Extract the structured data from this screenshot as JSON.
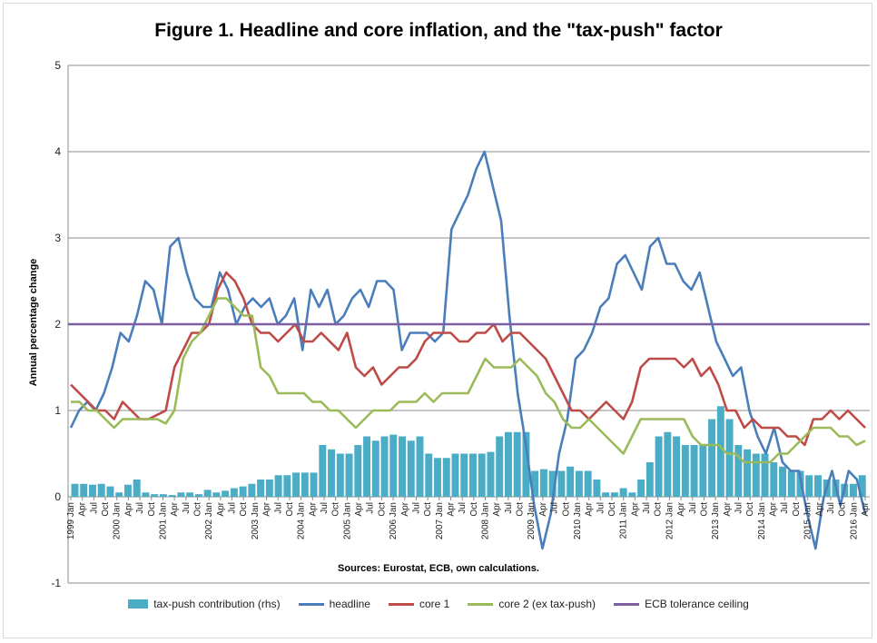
{
  "chart_data": {
    "type": "line",
    "title": "Figure 1. Headline and core inflation, and the \"tax-push\" factor",
    "ylabel": "Annual percentage change",
    "xlabel": "",
    "source": "Sources: Eurostat, ECB, own calculations.",
    "ylim": [
      -1,
      5
    ],
    "yticks": [
      "-1",
      "0",
      "1",
      "2",
      "3",
      "4",
      "5"
    ],
    "grid": true,
    "legend_position": "bottom",
    "x_tick_labels": [
      "1999 Jan",
      "Apr",
      "Jul",
      "Oct",
      "2000 Jan",
      "Apr",
      "Jul",
      "Oct",
      "2001 Jan",
      "Apr",
      "Jul",
      "Oct",
      "2002 Jan",
      "Apr",
      "Jul",
      "Oct",
      "2003 Jan",
      "Apr",
      "Jul",
      "Oct",
      "2004 Jan",
      "Apr",
      "Jul",
      "Oct",
      "2005 Jan",
      "Apr",
      "Jul",
      "Oct",
      "2006 Jan",
      "Apr",
      "Jul",
      "Oct",
      "2007 Jan",
      "Apr",
      "Jul",
      "Oct",
      "2008 Jan",
      "Apr",
      "Jul",
      "Oct",
      "2009 Jan",
      "Apr",
      "Jul",
      "Oct",
      "2010 Jan",
      "Apr",
      "Jul",
      "Oct",
      "2011 Jan",
      "Apr",
      "Jul",
      "Oct",
      "2012 Jan",
      "Apr",
      "Jul",
      "Oct",
      "2013 Jan",
      "Apr",
      "Jul",
      "Oct",
      "2014 Jan",
      "Apr",
      "Jul",
      "Oct",
      "2015 Jan",
      "Apr",
      "Jul",
      "Oct",
      "2016 Jan",
      "Apr"
    ],
    "series": [
      {
        "name": "tax-push contribution (rhs)",
        "kind": "bar",
        "color": "#4bacc6",
        "values": [
          0.15,
          0.15,
          0.14,
          0.15,
          0.12,
          0.05,
          0.14,
          0.2,
          0.05,
          0.03,
          0.03,
          0.02,
          0.05,
          0.05,
          0.03,
          0.08,
          0.05,
          0.07,
          0.1,
          0.12,
          0.15,
          0.2,
          0.2,
          0.25,
          0.25,
          0.28,
          0.28,
          0.28,
          0.6,
          0.55,
          0.5,
          0.5,
          0.6,
          0.7,
          0.65,
          0.7,
          0.72,
          0.7,
          0.65,
          0.7,
          0.5,
          0.45,
          0.45,
          0.5,
          0.5,
          0.5,
          0.5,
          0.52,
          0.7,
          0.75,
          0.75,
          0.75,
          0.3,
          0.32,
          0.3,
          0.3,
          0.35,
          0.3,
          0.3,
          0.2,
          0.05,
          0.05,
          0.1,
          0.05,
          0.2,
          0.4,
          0.7,
          0.75,
          0.7,
          0.6,
          0.6,
          0.6,
          0.9,
          1.05,
          0.9,
          0.6,
          0.55,
          0.5,
          0.5,
          0.4,
          0.35,
          0.3,
          0.3,
          0.25,
          0.25,
          0.2,
          0.2,
          0.15,
          0.15,
          0.25
        ]
      },
      {
        "name": "headline",
        "kind": "line",
        "color": "#4a7ebb",
        "values": [
          0.8,
          1.0,
          1.1,
          1.0,
          1.2,
          1.5,
          1.9,
          1.8,
          2.1,
          2.5,
          2.4,
          2.0,
          2.9,
          3.0,
          2.6,
          2.3,
          2.2,
          2.2,
          2.6,
          2.4,
          2.0,
          2.2,
          2.3,
          2.2,
          2.3,
          2.0,
          2.1,
          2.3,
          1.7,
          2.4,
          2.2,
          2.4,
          2.0,
          2.1,
          2.3,
          2.4,
          2.2,
          2.5,
          2.5,
          2.4,
          1.7,
          1.9,
          1.9,
          1.9,
          1.8,
          1.9,
          3.1,
          3.3,
          3.5,
          3.8,
          4.0,
          3.6,
          3.2,
          2.1,
          1.2,
          0.6,
          -0.1,
          -0.6,
          -0.2,
          0.5,
          0.9,
          1.6,
          1.7,
          1.9,
          2.2,
          2.3,
          2.7,
          2.8,
          2.6,
          2.4,
          2.9,
          3.0,
          2.7,
          2.7,
          2.5,
          2.4,
          2.6,
          2.2,
          1.8,
          1.6,
          1.4,
          1.5,
          1.0,
          0.7,
          0.5,
          0.8,
          0.4,
          0.3,
          0.3,
          -0.2,
          -0.6,
          0.0,
          0.3,
          -0.1,
          0.3,
          0.2,
          -0.2
        ]
      },
      {
        "name": "core 1",
        "kind": "line",
        "color": "#be4b48",
        "values": [
          1.3,
          1.2,
          1.1,
          1.0,
          1.0,
          0.9,
          1.1,
          1.0,
          0.9,
          0.9,
          0.95,
          1.0,
          1.5,
          1.7,
          1.9,
          1.9,
          2.0,
          2.4,
          2.6,
          2.5,
          2.3,
          2.0,
          1.9,
          1.9,
          1.8,
          1.9,
          2.0,
          1.8,
          1.8,
          1.9,
          1.8,
          1.7,
          1.9,
          1.5,
          1.4,
          1.5,
          1.3,
          1.4,
          1.5,
          1.5,
          1.6,
          1.8,
          1.9,
          1.9,
          1.9,
          1.8,
          1.8,
          1.9,
          1.9,
          2.0,
          1.8,
          1.9,
          1.9,
          1.8,
          1.7,
          1.6,
          1.4,
          1.2,
          1.0,
          1.0,
          0.9,
          1.0,
          1.1,
          1.0,
          0.9,
          1.1,
          1.5,
          1.6,
          1.6,
          1.6,
          1.6,
          1.5,
          1.6,
          1.4,
          1.5,
          1.3,
          1.0,
          1.0,
          0.8,
          0.9,
          0.8,
          0.8,
          0.8,
          0.7,
          0.7,
          0.6,
          0.9,
          0.9,
          1.0,
          0.9,
          1.0,
          0.9,
          0.8
        ]
      },
      {
        "name": "core 2 (ex tax-push)",
        "kind": "line",
        "color": "#9bbb59",
        "values": [
          1.1,
          1.1,
          1.0,
          1.0,
          0.9,
          0.8,
          0.9,
          0.9,
          0.9,
          0.9,
          0.9,
          0.85,
          1.0,
          1.6,
          1.8,
          1.9,
          2.1,
          2.3,
          2.3,
          2.2,
          2.1,
          2.1,
          1.5,
          1.4,
          1.2,
          1.2,
          1.2,
          1.2,
          1.1,
          1.1,
          1.0,
          1.0,
          0.9,
          0.8,
          0.9,
          1.0,
          1.0,
          1.0,
          1.1,
          1.1,
          1.1,
          1.2,
          1.1,
          1.2,
          1.2,
          1.2,
          1.2,
          1.4,
          1.6,
          1.5,
          1.5,
          1.5,
          1.6,
          1.5,
          1.4,
          1.2,
          1.1,
          0.9,
          0.8,
          0.8,
          0.9,
          0.8,
          0.7,
          0.6,
          0.5,
          0.7,
          0.9,
          0.9,
          0.9,
          0.9,
          0.9,
          0.9,
          0.7,
          0.6,
          0.6,
          0.6,
          0.5,
          0.5,
          0.4,
          0.4,
          0.4,
          0.4,
          0.5,
          0.5,
          0.6,
          0.7,
          0.8,
          0.8,
          0.8,
          0.7,
          0.7,
          0.6,
          0.65
        ]
      },
      {
        "name": "ECB tolerance ceiling",
        "kind": "hline",
        "color": "#7e5fa0",
        "value": 2.0
      }
    ]
  }
}
